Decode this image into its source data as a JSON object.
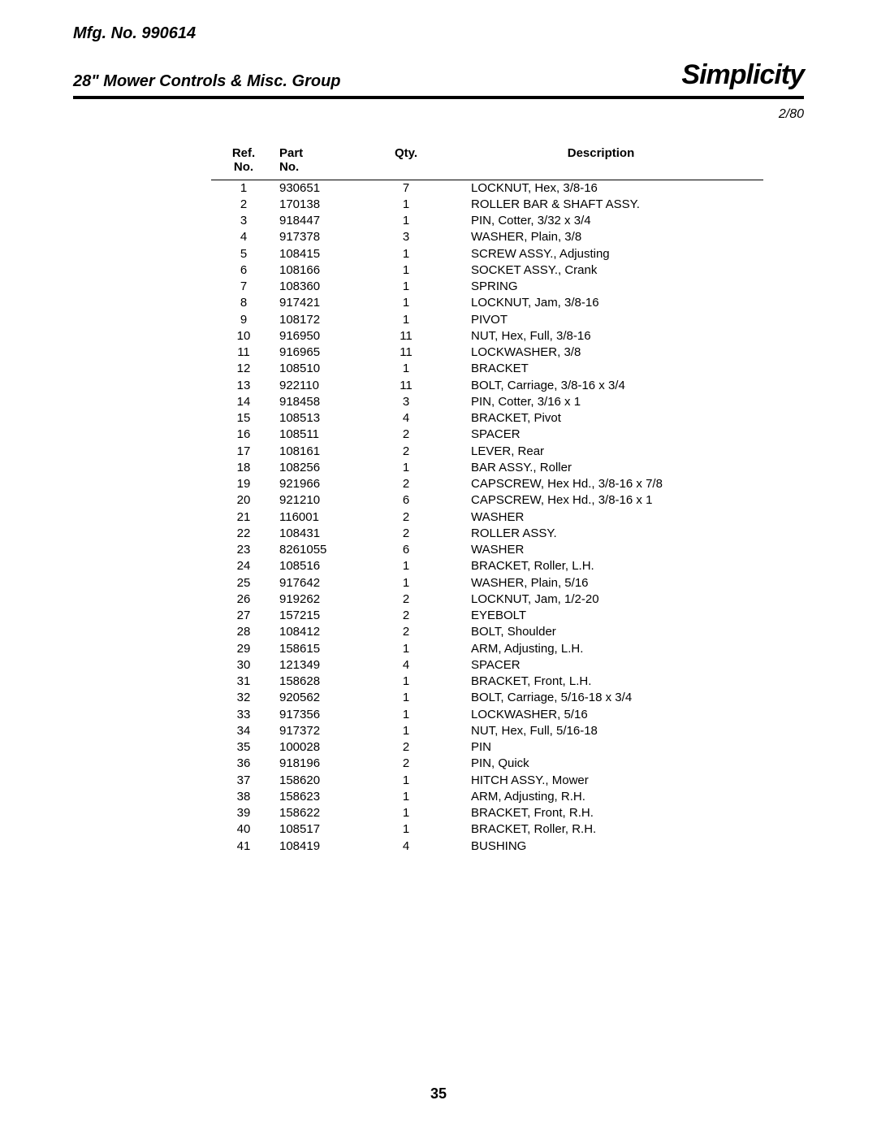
{
  "header": {
    "mfg": "Mfg. No. 990614",
    "title": "28\" Mower Controls & Misc. Group",
    "brand": "Simplicity",
    "date": "2/80"
  },
  "table": {
    "columns": {
      "ref": {
        "line1": "Ref.",
        "line2": "No."
      },
      "part": {
        "line1": "Part",
        "line2": "No."
      },
      "qty": {
        "line1": "",
        "line2": "Qty."
      },
      "desc": {
        "line1": "",
        "line2": "Description"
      }
    },
    "rows": [
      {
        "ref": "1",
        "part": "930651",
        "qty": "7",
        "desc": "LOCKNUT, Hex, 3/8-16"
      },
      {
        "ref": "2",
        "part": "170138",
        "qty": "1",
        "desc": "ROLLER BAR & SHAFT ASSY."
      },
      {
        "ref": "3",
        "part": "918447",
        "qty": "1",
        "desc": "PIN, Cotter, 3/32 x 3/4"
      },
      {
        "ref": "4",
        "part": "917378",
        "qty": "3",
        "desc": "WASHER, Plain, 3/8"
      },
      {
        "ref": "5",
        "part": "108415",
        "qty": "1",
        "desc": "SCREW ASSY., Adjusting"
      },
      {
        "ref": "6",
        "part": "108166",
        "qty": "1",
        "desc": "SOCKET ASSY., Crank"
      },
      {
        "ref": "7",
        "part": "108360",
        "qty": "1",
        "desc": "SPRING"
      },
      {
        "ref": "8",
        "part": "917421",
        "qty": "1",
        "desc": "LOCKNUT, Jam, 3/8-16"
      },
      {
        "ref": "9",
        "part": "108172",
        "qty": "1",
        "desc": "PIVOT"
      },
      {
        "ref": "10",
        "part": "916950",
        "qty": "11",
        "desc": "NUT, Hex, Full, 3/8-16"
      },
      {
        "ref": "11",
        "part": "916965",
        "qty": "11",
        "desc": "LOCKWASHER, 3/8"
      },
      {
        "ref": "12",
        "part": "108510",
        "qty": "1",
        "desc": "BRACKET"
      },
      {
        "ref": "13",
        "part": "922110",
        "qty": "11",
        "desc": "BOLT, Carriage, 3/8-16 x 3/4"
      },
      {
        "ref": "14",
        "part": "918458",
        "qty": "3",
        "desc": "PIN, Cotter, 3/16 x 1"
      },
      {
        "ref": "15",
        "part": "108513",
        "qty": "4",
        "desc": "BRACKET, Pivot"
      },
      {
        "ref": "16",
        "part": "108511",
        "qty": "2",
        "desc": "SPACER"
      },
      {
        "ref": "17",
        "part": "108161",
        "qty": "2",
        "desc": "LEVER, Rear"
      },
      {
        "ref": "18",
        "part": "108256",
        "qty": "1",
        "desc": "BAR ASSY., Roller"
      },
      {
        "ref": "19",
        "part": "921966",
        "qty": "2",
        "desc": "CAPSCREW, Hex Hd., 3/8-16 x 7/8"
      },
      {
        "ref": "20",
        "part": "921210",
        "qty": "6",
        "desc": "CAPSCREW, Hex Hd., 3/8-16 x 1"
      },
      {
        "ref": "21",
        "part": "116001",
        "qty": "2",
        "desc": "WASHER"
      },
      {
        "ref": "22",
        "part": "108431",
        "qty": "2",
        "desc": "ROLLER ASSY."
      },
      {
        "ref": "23",
        "part": "8261055",
        "qty": "6",
        "desc": "WASHER"
      },
      {
        "ref": "24",
        "part": "108516",
        "qty": "1",
        "desc": "BRACKET, Roller, L.H."
      },
      {
        "ref": "25",
        "part": "917642",
        "qty": "1",
        "desc": "WASHER, Plain, 5/16"
      },
      {
        "ref": "26",
        "part": "919262",
        "qty": "2",
        "desc": "LOCKNUT, Jam, 1/2-20"
      },
      {
        "ref": "27",
        "part": "157215",
        "qty": "2",
        "desc": "EYEBOLT"
      },
      {
        "ref": "28",
        "part": "108412",
        "qty": "2",
        "desc": "BOLT, Shoulder"
      },
      {
        "ref": "29",
        "part": "158615",
        "qty": "1",
        "desc": "ARM, Adjusting, L.H."
      },
      {
        "ref": "30",
        "part": "121349",
        "qty": "4",
        "desc": "SPACER"
      },
      {
        "ref": "31",
        "part": "158628",
        "qty": "1",
        "desc": "BRACKET, Front, L.H."
      },
      {
        "ref": "32",
        "part": "920562",
        "qty": "1",
        "desc": "BOLT, Carriage, 5/16-18 x 3/4"
      },
      {
        "ref": "33",
        "part": "917356",
        "qty": "1",
        "desc": "LOCKWASHER, 5/16"
      },
      {
        "ref": "34",
        "part": "917372",
        "qty": "1",
        "desc": "NUT, Hex, Full, 5/16-18"
      },
      {
        "ref": "35",
        "part": "100028",
        "qty": "2",
        "desc": "PIN"
      },
      {
        "ref": "36",
        "part": "918196",
        "qty": "2",
        "desc": "PIN, Quick"
      },
      {
        "ref": "37",
        "part": "158620",
        "qty": "1",
        "desc": "HITCH ASSY., Mower"
      },
      {
        "ref": "38",
        "part": "158623",
        "qty": "1",
        "desc": "ARM, Adjusting, R.H."
      },
      {
        "ref": "39",
        "part": "158622",
        "qty": "1",
        "desc": "BRACKET, Front, R.H."
      },
      {
        "ref": "40",
        "part": "108517",
        "qty": "1",
        "desc": "BRACKET, Roller, R.H."
      },
      {
        "ref": "41",
        "part": "108419",
        "qty": "4",
        "desc": "BUSHING"
      }
    ]
  },
  "pagenum": "35"
}
